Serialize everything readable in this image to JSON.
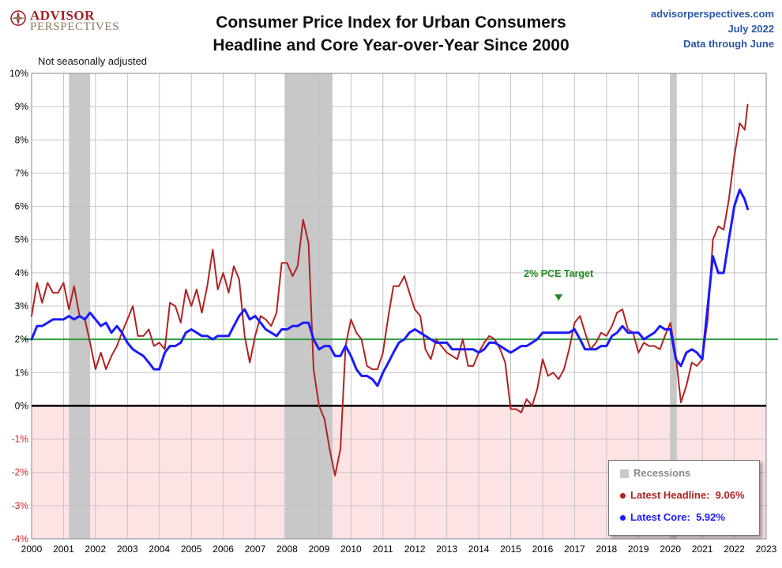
{
  "header": {
    "logo_line1": "ADVISOR",
    "logo_line2": "PERSPECTIVES",
    "title_line1": "Consumer Price Index for Urban Consumers",
    "title_line2": "Headline and Core Year-over-Year Since 2000",
    "source_line1": "advisorperspectives.com",
    "source_line2": "July 2022",
    "source_line3": "Data through June",
    "note": "Not seasonally adjusted"
  },
  "legend": {
    "recessions": "Recessions",
    "headline_label": "Latest Headline:",
    "headline_value": "9.06%",
    "core_label": "Latest Core:",
    "core_value": "5.92%"
  },
  "colors": {
    "headline": "#b22222",
    "core": "#1a1aff",
    "target": "#2e9e44",
    "negative_zone": "#fde3e3",
    "recession": "#c8c8c8",
    "target_label": "#1f8a1f"
  },
  "chart_data": {
    "type": "line",
    "xlim": [
      2000,
      2023
    ],
    "ylim": [
      -4,
      10
    ],
    "y_unit": "%",
    "x_ticks": [
      "2000",
      "2001",
      "2002",
      "2003",
      "2004",
      "2005",
      "2006",
      "2007",
      "2008",
      "2009",
      "2010",
      "2011",
      "2012",
      "2013",
      "2014",
      "2015",
      "2016",
      "2017",
      "2018",
      "2019",
      "2020",
      "2021",
      "2022",
      "2023"
    ],
    "y_ticks": [
      "10%",
      "9%",
      "8%",
      "7%",
      "6%",
      "5%",
      "4%",
      "3%",
      "2%",
      "1%",
      "0%",
      "-1%",
      "-2%",
      "-3%",
      "-4%"
    ],
    "grid": true,
    "recessions": [
      [
        2001.17,
        2001.83
      ],
      [
        2007.92,
        2009.42
      ],
      [
        2020.0,
        2020.2
      ]
    ],
    "target": {
      "value": 2,
      "label": "2% PCE Target",
      "label_x": 2016.5
    },
    "series": [
      {
        "name": "Headline",
        "points": [
          [
            2000.0,
            2.7
          ],
          [
            2000.17,
            3.7
          ],
          [
            2000.33,
            3.1
          ],
          [
            2000.5,
            3.7
          ],
          [
            2000.67,
            3.4
          ],
          [
            2000.83,
            3.4
          ],
          [
            2001.0,
            3.7
          ],
          [
            2001.17,
            2.9
          ],
          [
            2001.33,
            3.6
          ],
          [
            2001.5,
            2.7
          ],
          [
            2001.67,
            2.6
          ],
          [
            2001.83,
            1.9
          ],
          [
            2002.0,
            1.1
          ],
          [
            2002.17,
            1.6
          ],
          [
            2002.33,
            1.1
          ],
          [
            2002.5,
            1.5
          ],
          [
            2002.67,
            1.8
          ],
          [
            2002.83,
            2.2
          ],
          [
            2003.0,
            2.6
          ],
          [
            2003.17,
            3.0
          ],
          [
            2003.33,
            2.1
          ],
          [
            2003.5,
            2.1
          ],
          [
            2003.67,
            2.3
          ],
          [
            2003.83,
            1.8
          ],
          [
            2004.0,
            1.9
          ],
          [
            2004.17,
            1.7
          ],
          [
            2004.33,
            3.1
          ],
          [
            2004.5,
            3.0
          ],
          [
            2004.67,
            2.5
          ],
          [
            2004.83,
            3.5
          ],
          [
            2005.0,
            3.0
          ],
          [
            2005.17,
            3.5
          ],
          [
            2005.33,
            2.8
          ],
          [
            2005.5,
            3.6
          ],
          [
            2005.67,
            4.7
          ],
          [
            2005.83,
            3.5
          ],
          [
            2006.0,
            4.0
          ],
          [
            2006.17,
            3.4
          ],
          [
            2006.33,
            4.2
          ],
          [
            2006.5,
            3.8
          ],
          [
            2006.67,
            2.1
          ],
          [
            2006.83,
            1.3
          ],
          [
            2007.0,
            2.1
          ],
          [
            2007.17,
            2.7
          ],
          [
            2007.33,
            2.6
          ],
          [
            2007.5,
            2.4
          ],
          [
            2007.67,
            2.8
          ],
          [
            2007.83,
            4.3
          ],
          [
            2008.0,
            4.3
          ],
          [
            2008.17,
            3.9
          ],
          [
            2008.33,
            4.2
          ],
          [
            2008.5,
            5.6
          ],
          [
            2008.67,
            4.9
          ],
          [
            2008.83,
            1.1
          ],
          [
            2009.0,
            0.0
          ],
          [
            2009.17,
            -0.4
          ],
          [
            2009.33,
            -1.3
          ],
          [
            2009.5,
            -2.1
          ],
          [
            2009.67,
            -1.3
          ],
          [
            2009.83,
            1.8
          ],
          [
            2010.0,
            2.6
          ],
          [
            2010.17,
            2.2
          ],
          [
            2010.33,
            2.0
          ],
          [
            2010.5,
            1.2
          ],
          [
            2010.67,
            1.1
          ],
          [
            2010.83,
            1.1
          ],
          [
            2011.0,
            1.6
          ],
          [
            2011.17,
            2.7
          ],
          [
            2011.33,
            3.6
          ],
          [
            2011.5,
            3.6
          ],
          [
            2011.67,
            3.9
          ],
          [
            2011.83,
            3.4
          ],
          [
            2012.0,
            2.9
          ],
          [
            2012.17,
            2.7
          ],
          [
            2012.33,
            1.7
          ],
          [
            2012.5,
            1.4
          ],
          [
            2012.67,
            2.0
          ],
          [
            2012.83,
            1.8
          ],
          [
            2013.0,
            1.6
          ],
          [
            2013.17,
            1.5
          ],
          [
            2013.33,
            1.4
          ],
          [
            2013.5,
            2.0
          ],
          [
            2013.67,
            1.2
          ],
          [
            2013.83,
            1.2
          ],
          [
            2014.0,
            1.6
          ],
          [
            2014.17,
            1.9
          ],
          [
            2014.33,
            2.1
          ],
          [
            2014.5,
            2.0
          ],
          [
            2014.67,
            1.7
          ],
          [
            2014.83,
            1.3
          ],
          [
            2015.0,
            -0.1
          ],
          [
            2015.17,
            -0.1
          ],
          [
            2015.33,
            -0.2
          ],
          [
            2015.5,
            0.2
          ],
          [
            2015.67,
            0.0
          ],
          [
            2015.83,
            0.5
          ],
          [
            2016.0,
            1.4
          ],
          [
            2016.17,
            0.9
          ],
          [
            2016.33,
            1.0
          ],
          [
            2016.5,
            0.8
          ],
          [
            2016.67,
            1.1
          ],
          [
            2016.83,
            1.7
          ],
          [
            2017.0,
            2.5
          ],
          [
            2017.17,
            2.7
          ],
          [
            2017.33,
            2.2
          ],
          [
            2017.5,
            1.7
          ],
          [
            2017.67,
            1.9
          ],
          [
            2017.83,
            2.2
          ],
          [
            2018.0,
            2.1
          ],
          [
            2018.17,
            2.4
          ],
          [
            2018.33,
            2.8
          ],
          [
            2018.5,
            2.9
          ],
          [
            2018.67,
            2.3
          ],
          [
            2018.83,
            2.2
          ],
          [
            2019.0,
            1.6
          ],
          [
            2019.17,
            1.9
          ],
          [
            2019.33,
            1.8
          ],
          [
            2019.5,
            1.8
          ],
          [
            2019.67,
            1.7
          ],
          [
            2019.83,
            2.1
          ],
          [
            2020.0,
            2.5
          ],
          [
            2020.17,
            1.5
          ],
          [
            2020.33,
            0.1
          ],
          [
            2020.5,
            0.6
          ],
          [
            2020.67,
            1.3
          ],
          [
            2020.83,
            1.2
          ],
          [
            2021.0,
            1.4
          ],
          [
            2021.17,
            2.6
          ],
          [
            2021.33,
            5.0
          ],
          [
            2021.5,
            5.4
          ],
          [
            2021.67,
            5.3
          ],
          [
            2021.83,
            6.2
          ],
          [
            2022.0,
            7.5
          ],
          [
            2022.17,
            8.5
          ],
          [
            2022.33,
            8.3
          ],
          [
            2022.42,
            9.06
          ]
        ]
      },
      {
        "name": "Core",
        "points": [
          [
            2000.0,
            2.0
          ],
          [
            2000.17,
            2.4
          ],
          [
            2000.33,
            2.4
          ],
          [
            2000.5,
            2.5
          ],
          [
            2000.67,
            2.6
          ],
          [
            2000.83,
            2.6
          ],
          [
            2001.0,
            2.6
          ],
          [
            2001.17,
            2.7
          ],
          [
            2001.33,
            2.6
          ],
          [
            2001.5,
            2.7
          ],
          [
            2001.67,
            2.6
          ],
          [
            2001.83,
            2.8
          ],
          [
            2002.0,
            2.6
          ],
          [
            2002.17,
            2.4
          ],
          [
            2002.33,
            2.5
          ],
          [
            2002.5,
            2.2
          ],
          [
            2002.67,
            2.4
          ],
          [
            2002.83,
            2.2
          ],
          [
            2003.0,
            1.9
          ],
          [
            2003.17,
            1.7
          ],
          [
            2003.33,
            1.6
          ],
          [
            2003.5,
            1.5
          ],
          [
            2003.67,
            1.3
          ],
          [
            2003.83,
            1.1
          ],
          [
            2004.0,
            1.1
          ],
          [
            2004.17,
            1.6
          ],
          [
            2004.33,
            1.8
          ],
          [
            2004.5,
            1.8
          ],
          [
            2004.67,
            1.9
          ],
          [
            2004.83,
            2.2
          ],
          [
            2005.0,
            2.3
          ],
          [
            2005.17,
            2.2
          ],
          [
            2005.33,
            2.1
          ],
          [
            2005.5,
            2.1
          ],
          [
            2005.67,
            2.0
          ],
          [
            2005.83,
            2.1
          ],
          [
            2006.0,
            2.1
          ],
          [
            2006.17,
            2.1
          ],
          [
            2006.33,
            2.4
          ],
          [
            2006.5,
            2.7
          ],
          [
            2006.67,
            2.9
          ],
          [
            2006.83,
            2.6
          ],
          [
            2007.0,
            2.7
          ],
          [
            2007.17,
            2.5
          ],
          [
            2007.33,
            2.3
          ],
          [
            2007.5,
            2.2
          ],
          [
            2007.67,
            2.1
          ],
          [
            2007.83,
            2.3
          ],
          [
            2008.0,
            2.3
          ],
          [
            2008.17,
            2.4
          ],
          [
            2008.33,
            2.4
          ],
          [
            2008.5,
            2.5
          ],
          [
            2008.67,
            2.5
          ],
          [
            2008.83,
            2.0
          ],
          [
            2009.0,
            1.7
          ],
          [
            2009.17,
            1.8
          ],
          [
            2009.33,
            1.8
          ],
          [
            2009.5,
            1.5
          ],
          [
            2009.67,
            1.5
          ],
          [
            2009.83,
            1.8
          ],
          [
            2010.0,
            1.5
          ],
          [
            2010.17,
            1.1
          ],
          [
            2010.33,
            0.9
          ],
          [
            2010.5,
            0.9
          ],
          [
            2010.67,
            0.8
          ],
          [
            2010.83,
            0.6
          ],
          [
            2011.0,
            1.0
          ],
          [
            2011.17,
            1.3
          ],
          [
            2011.33,
            1.6
          ],
          [
            2011.5,
            1.9
          ],
          [
            2011.67,
            2.0
          ],
          [
            2011.83,
            2.2
          ],
          [
            2012.0,
            2.3
          ],
          [
            2012.17,
            2.2
          ],
          [
            2012.33,
            2.1
          ],
          [
            2012.5,
            2.0
          ],
          [
            2012.67,
            1.9
          ],
          [
            2012.83,
            1.9
          ],
          [
            2013.0,
            1.9
          ],
          [
            2013.17,
            1.7
          ],
          [
            2013.33,
            1.7
          ],
          [
            2013.5,
            1.7
          ],
          [
            2013.67,
            1.7
          ],
          [
            2013.83,
            1.7
          ],
          [
            2014.0,
            1.6
          ],
          [
            2014.17,
            1.7
          ],
          [
            2014.33,
            1.9
          ],
          [
            2014.5,
            1.9
          ],
          [
            2014.67,
            1.8
          ],
          [
            2014.83,
            1.7
          ],
          [
            2015.0,
            1.6
          ],
          [
            2015.17,
            1.7
          ],
          [
            2015.33,
            1.8
          ],
          [
            2015.5,
            1.8
          ],
          [
            2015.67,
            1.9
          ],
          [
            2015.83,
            2.0
          ],
          [
            2016.0,
            2.2
          ],
          [
            2016.17,
            2.2
          ],
          [
            2016.33,
            2.2
          ],
          [
            2016.5,
            2.2
          ],
          [
            2016.67,
            2.2
          ],
          [
            2016.83,
            2.2
          ],
          [
            2017.0,
            2.3
          ],
          [
            2017.17,
            2.0
          ],
          [
            2017.33,
            1.7
          ],
          [
            2017.5,
            1.7
          ],
          [
            2017.67,
            1.7
          ],
          [
            2017.83,
            1.8
          ],
          [
            2018.0,
            1.8
          ],
          [
            2018.17,
            2.1
          ],
          [
            2018.33,
            2.2
          ],
          [
            2018.5,
            2.4
          ],
          [
            2018.67,
            2.2
          ],
          [
            2018.83,
            2.2
          ],
          [
            2019.0,
            2.2
          ],
          [
            2019.17,
            2.0
          ],
          [
            2019.33,
            2.1
          ],
          [
            2019.5,
            2.2
          ],
          [
            2019.67,
            2.4
          ],
          [
            2019.83,
            2.3
          ],
          [
            2020.0,
            2.3
          ],
          [
            2020.17,
            1.4
          ],
          [
            2020.33,
            1.2
          ],
          [
            2020.5,
            1.6
          ],
          [
            2020.67,
            1.7
          ],
          [
            2020.83,
            1.6
          ],
          [
            2021.0,
            1.4
          ],
          [
            2021.17,
            3.0
          ],
          [
            2021.33,
            4.5
          ],
          [
            2021.5,
            4.0
          ],
          [
            2021.67,
            4.0
          ],
          [
            2021.83,
            5.0
          ],
          [
            2022.0,
            6.0
          ],
          [
            2022.17,
            6.5
          ],
          [
            2022.33,
            6.2
          ],
          [
            2022.42,
            5.92
          ]
        ]
      }
    ]
  }
}
